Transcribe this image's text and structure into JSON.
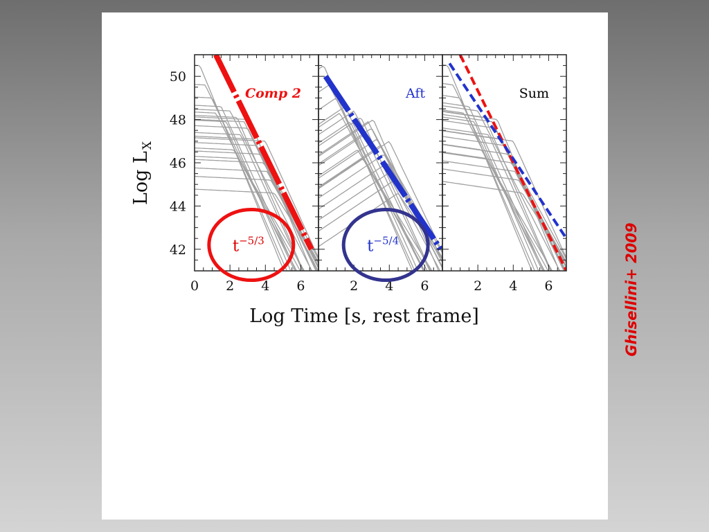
{
  "slide": {
    "credit": "Ghisellini+ 2009",
    "credit_color": "#dd0000"
  },
  "chart_data": {
    "type": "line",
    "title": "",
    "xlabel": "Log Time [s, rest frame]",
    "ylabel_main": "Log L",
    "ylabel_sub": "X",
    "ylim": [
      41,
      51
    ],
    "ytick_values": [
      42,
      44,
      46,
      48,
      50
    ],
    "ytick_labels": [
      "42",
      "44",
      "46",
      "48",
      "50"
    ],
    "colors": {
      "gray": "#a0a0a0",
      "red": "#ee1111",
      "blue": "#2233cc",
      "circle_blue": "#33338f"
    },
    "panels": [
      {
        "name": "Comp 2",
        "label_color": "#ee1111",
        "xlim": [
          0,
          7
        ],
        "xtick_values": [
          0,
          2,
          4,
          6
        ],
        "xtick_labels": [
          "0",
          "2",
          "4",
          "6"
        ],
        "fit_lines": [
          {
            "color": "#ee1111",
            "style": "thick-dashdot",
            "x": [
              1.2,
              6.6
            ],
            "y": [
              51.0,
              42.0
            ]
          }
        ],
        "annotation": {
          "text": "t",
          "sup": "−5/3",
          "color": "#dd0000",
          "center": [
            3.2,
            42.2
          ]
        }
      },
      {
        "name": "Aft",
        "label_color": "#2233cc",
        "xlim": [
          0,
          7
        ],
        "xtick_values": [
          2,
          4,
          6
        ],
        "xtick_labels": [
          "2",
          "4",
          "6"
        ],
        "fit_lines": [
          {
            "color": "#2233cc",
            "style": "thick-dashdot",
            "x": [
              0.4,
              6.9
            ],
            "y": [
              50.0,
              42.0
            ]
          }
        ],
        "annotation": {
          "text": "t",
          "sup": "−5/4",
          "color": "#2233cc",
          "center": [
            3.8,
            42.2
          ]
        }
      },
      {
        "name": "Sum",
        "label_color": "#000000",
        "xlim": [
          0,
          7
        ],
        "xtick_values": [
          2,
          4,
          6
        ],
        "xtick_labels": [
          "2",
          "4",
          "6"
        ],
        "fit_lines": [
          {
            "color": "#ee1111",
            "style": "dashed",
            "x": [
              1.0,
              7.0
            ],
            "y": [
              51.0,
              41.0
            ]
          },
          {
            "color": "#2233cc",
            "style": "dashed",
            "x": [
              0.4,
              7.0
            ],
            "y": [
              50.6,
              42.5
            ]
          }
        ],
        "annotation": null
      }
    ],
    "gray_curves": [
      {
        "peak_x": 0.3,
        "peak_y": 50.5,
        "slope": -2.0
      },
      {
        "peak_x": 0.6,
        "peak_y": 49.6,
        "slope": -1.7
      },
      {
        "peak_x": 1.0,
        "peak_y": 49.0,
        "slope": -1.9
      },
      {
        "peak_x": 1.5,
        "peak_y": 48.6,
        "slope": -1.8
      },
      {
        "peak_x": 2.0,
        "peak_y": 48.4,
        "slope": -1.6
      },
      {
        "peak_x": 2.4,
        "peak_y": 48.1,
        "slope": -1.9
      },
      {
        "peak_x": 2.8,
        "peak_y": 47.9,
        "slope": -1.7
      },
      {
        "peak_x": 3.0,
        "peak_y": 47.6,
        "slope": -1.6
      },
      {
        "peak_x": 2.6,
        "peak_y": 47.3,
        "slope": -1.8
      },
      {
        "peak_x": 3.3,
        "peak_y": 47.1,
        "slope": -1.5
      },
      {
        "peak_x": 3.5,
        "peak_y": 46.8,
        "slope": -1.7
      },
      {
        "peak_x": 2.2,
        "peak_y": 46.6,
        "slope": -1.4
      },
      {
        "peak_x": 3.7,
        "peak_y": 46.4,
        "slope": -1.6
      },
      {
        "peak_x": 3.9,
        "peak_y": 46.0,
        "slope": -1.5
      },
      {
        "peak_x": 4.1,
        "peak_y": 45.6,
        "slope": -1.6
      },
      {
        "peak_x": 4.3,
        "peak_y": 45.2,
        "slope": -1.4
      },
      {
        "peak_x": 4.5,
        "peak_y": 44.6,
        "slope": -1.3
      },
      {
        "peak_x": 1.8,
        "peak_y": 47.9,
        "slope": -1.9
      },
      {
        "peak_x": 1.2,
        "peak_y": 48.3,
        "slope": -1.6
      },
      {
        "peak_x": 3.1,
        "peak_y": 48.0,
        "slope": -2.0
      },
      {
        "peak_x": 4.0,
        "peak_y": 47.0,
        "slope": -1.8
      },
      {
        "peak_x": 2.5,
        "peak_y": 46.2,
        "slope": -1.5
      }
    ]
  }
}
